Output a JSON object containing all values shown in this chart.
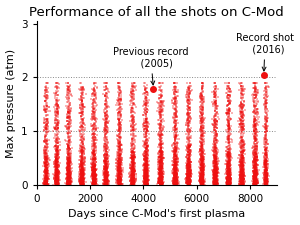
{
  "title": "Performance of all the shots on C-Mod",
  "xlabel": "Days since C-Mod's first plasma",
  "ylabel": "Max pressure (atm)",
  "xlim": [
    0,
    9000
  ],
  "ylim": [
    0,
    3.05
  ],
  "xticks": [
    0,
    2000,
    4000,
    6000,
    8000
  ],
  "yticks": [
    0,
    1,
    2,
    3
  ],
  "hlines": [
    1.0,
    2.0
  ],
  "scatter_color": "#ee1111",
  "marker": "+",
  "prev_record_x": 4380,
  "prev_record_y": 1.79,
  "prev_record_label": "Previous record\n    (2005)",
  "record_x": 8520,
  "record_y": 2.05,
  "record_label": "Record shot\n  (2016)",
  "annotation_fontsize": 7.0,
  "background_color": "#ffffff",
  "seed": 42,
  "campaign_centers": [
    350,
    750,
    1200,
    1700,
    2150,
    2600,
    3100,
    3600,
    4100,
    4650,
    5200,
    5700,
    6200,
    6700,
    7200,
    7700,
    8200,
    8600
  ],
  "campaign_widths": [
    130,
    130,
    130,
    130,
    130,
    130,
    130,
    130,
    130,
    130,
    130,
    130,
    130,
    130,
    130,
    130,
    130,
    100
  ],
  "campaign_npoints": [
    600,
    700,
    700,
    700,
    700,
    700,
    700,
    700,
    800,
    800,
    800,
    800,
    800,
    800,
    800,
    800,
    800,
    600
  ]
}
